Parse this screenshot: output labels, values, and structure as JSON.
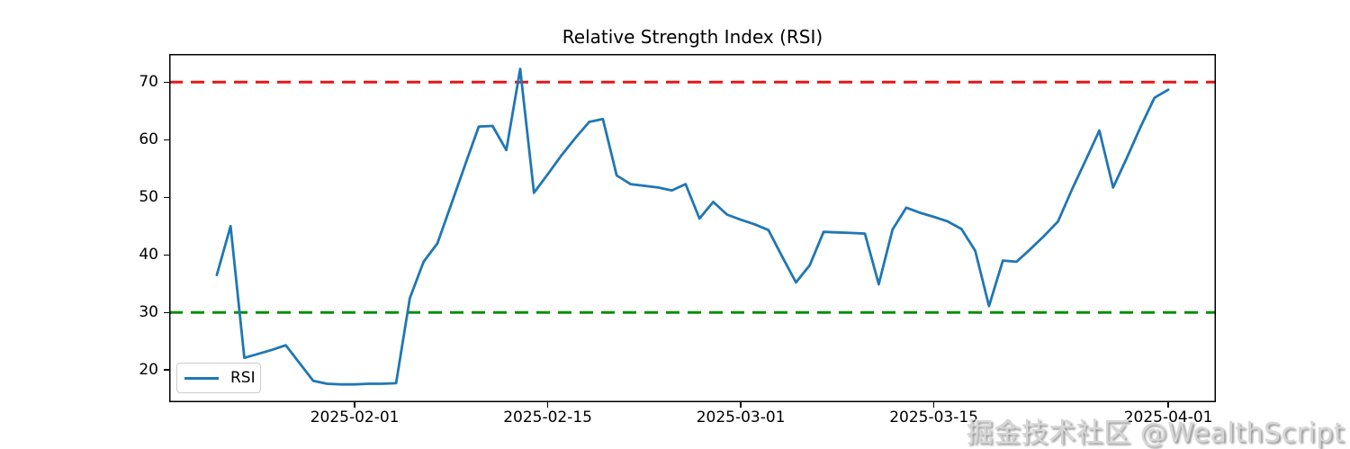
{
  "figure": {
    "title": "Relative Strength Index (RSI)",
    "watermark_text": "掘金技术社区 @WealthScript"
  },
  "legend": {
    "items": [
      {
        "label": "RSI",
        "color": "#1f77b4"
      }
    ]
  },
  "colors": {
    "rsi_line": "#1f77b4",
    "overbought": "#e51616",
    "oversold": "#0a8f0a",
    "axis": "#000000",
    "watermark": "#d6d6d6"
  },
  "chart_data": {
    "type": "line",
    "title": "Relative Strength Index (RSI)",
    "xlabel": "",
    "ylabel": "",
    "grid": false,
    "legend_position": "lower left",
    "ylim": [
      14.4,
      74.9
    ],
    "yticks": [
      20,
      30,
      40,
      50,
      60,
      70
    ],
    "xticks": [
      "2025-02-01",
      "2025-02-15",
      "2025-03-01",
      "2025-03-15",
      "2025-04-01"
    ],
    "reference_lines": [
      {
        "name": "overbought",
        "value": 70,
        "color": "#e51616",
        "style": "dashed"
      },
      {
        "name": "oversold",
        "value": 30,
        "color": "#0a8f0a",
        "style": "dashed"
      }
    ],
    "x": [
      "2025-01-22",
      "2025-01-23",
      "2025-01-24",
      "2025-01-25",
      "2025-01-26",
      "2025-01-27",
      "2025-01-28",
      "2025-01-29",
      "2025-01-30",
      "2025-01-31",
      "2025-02-01",
      "2025-02-02",
      "2025-02-03",
      "2025-02-04",
      "2025-02-05",
      "2025-02-06",
      "2025-02-07",
      "2025-02-08",
      "2025-02-09",
      "2025-02-10",
      "2025-02-11",
      "2025-02-12",
      "2025-02-13",
      "2025-02-14",
      "2025-02-15",
      "2025-02-16",
      "2025-02-17",
      "2025-02-18",
      "2025-02-19",
      "2025-02-20",
      "2025-02-21",
      "2025-02-22",
      "2025-02-23",
      "2025-02-24",
      "2025-02-25",
      "2025-02-26",
      "2025-02-27",
      "2025-02-28",
      "2025-03-01",
      "2025-03-02",
      "2025-03-03",
      "2025-03-04",
      "2025-03-05",
      "2025-03-06",
      "2025-03-07",
      "2025-03-08",
      "2025-03-09",
      "2025-03-10",
      "2025-03-11",
      "2025-03-12",
      "2025-03-13",
      "2025-03-14",
      "2025-03-15",
      "2025-03-16",
      "2025-03-17",
      "2025-03-18",
      "2025-03-19",
      "2025-03-20",
      "2025-03-21",
      "2025-03-22",
      "2025-03-23",
      "2025-03-24",
      "2025-03-25",
      "2025-03-26",
      "2025-03-27",
      "2025-03-28",
      "2025-03-29",
      "2025-03-30",
      "2025-03-31",
      "2025-04-01"
    ],
    "series": [
      {
        "name": "RSI",
        "color": "#1f77b4",
        "values": [
          36.5,
          45.0,
          22.1,
          22.8,
          23.5,
          24.3,
          21.2,
          18.1,
          17.6,
          17.5,
          17.5,
          17.6,
          17.6,
          17.7,
          32.5,
          38.8,
          42.0,
          48.8,
          55.6,
          62.3,
          62.4,
          58.2,
          72.3,
          50.8,
          54.0,
          57.3,
          60.3,
          63.1,
          63.6,
          53.8,
          52.3,
          52.0,
          51.7,
          51.2,
          52.3,
          46.3,
          49.2,
          47.0,
          46.1,
          45.3,
          44.3,
          39.7,
          35.2,
          38.2,
          44.0,
          43.9,
          43.8,
          43.7,
          34.9,
          44.4,
          48.2,
          47.3,
          46.6,
          45.8,
          44.5,
          40.7,
          31.1,
          39.0,
          38.8,
          41.0,
          43.3,
          45.8,
          51.3,
          56.4,
          61.6,
          51.7,
          56.9,
          62.3,
          67.3,
          68.7
        ]
      }
    ]
  }
}
